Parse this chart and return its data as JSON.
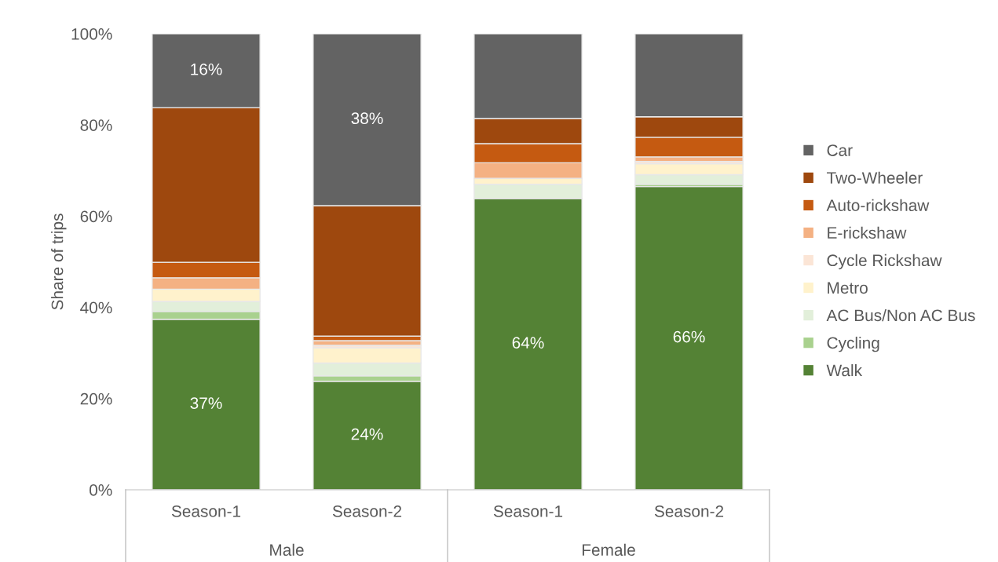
{
  "chart_data": {
    "type": "bar",
    "stacked": true,
    "ylabel": "Share of trips",
    "categories": [
      "Season-1",
      "Season-2",
      "Season-1",
      "Season-2"
    ],
    "annotations": [
      "Male",
      "Female"
    ],
    "series": [
      {
        "name": "Walk",
        "color": "#548235",
        "values": [
          37.4,
          23.8,
          63.9,
          66.5
        ],
        "value_labels": [
          "37%",
          "24%",
          "64%",
          "66%"
        ]
      },
      {
        "name": "Cycling",
        "color": "#a9d18e",
        "values": [
          1.7,
          1.2,
          0,
          0.5
        ]
      },
      {
        "name": "AC Bus/Non AC Bus",
        "color": "#e2efda",
        "values": [
          2.2,
          2.8,
          3.1,
          2.1
        ]
      },
      {
        "name": "Metro",
        "color": "#fff2cc",
        "values": [
          2.7,
          3.3,
          1.3,
          2.4
        ]
      },
      {
        "name": "Cycle Rickshaw",
        "color": "#fbe5d6",
        "values": [
          0,
          0.6,
          0,
          0.5
        ]
      },
      {
        "name": "E-rickshaw",
        "color": "#f4b183",
        "values": [
          2.5,
          1.0,
          3.4,
          1.0
        ]
      },
      {
        "name": "Auto-rickshaw",
        "color": "#c55a11",
        "values": [
          3.4,
          1.0,
          4.2,
          4.3
        ]
      },
      {
        "name": "Two-Wheeler",
        "color": "#9e480e",
        "values": [
          33.9,
          28.6,
          5.5,
          4.5
        ]
      },
      {
        "name": "Car",
        "color": "#636363",
        "values": [
          16.2,
          37.7,
          18.6,
          18.2
        ],
        "value_labels": [
          "16%",
          "38%",
          null,
          null
        ]
      }
    ],
    "ylim": [
      0,
      100
    ],
    "yticks": [
      {
        "value": 0,
        "label": "0%"
      },
      {
        "value": 20,
        "label": "20%"
      },
      {
        "value": 40,
        "label": "40%"
      },
      {
        "value": 60,
        "label": "60%"
      },
      {
        "value": 80,
        "label": "80%"
      },
      {
        "value": 100,
        "label": "100%"
      }
    ],
    "grid": false,
    "legend": "right"
  }
}
